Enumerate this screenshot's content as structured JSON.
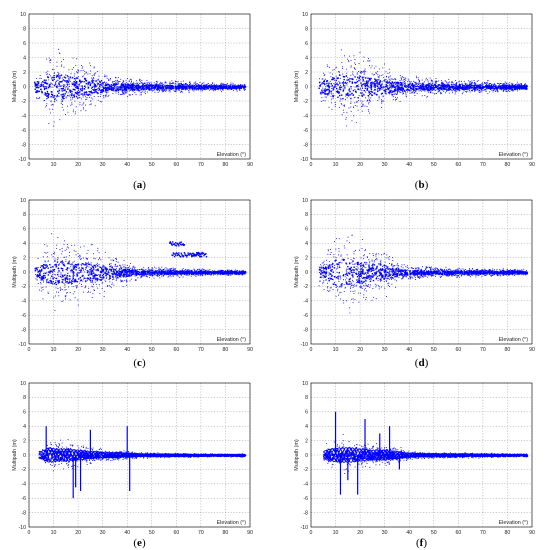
{
  "chart_data": [
    {
      "caption": "(a)",
      "type": "scatter",
      "ylabel": "Multipath (m)",
      "xlabel": "Elevation (°)",
      "xlim": [
        0,
        90
      ],
      "ylim": [
        -10,
        10
      ],
      "grid": true,
      "xticks": [
        0,
        10,
        20,
        30,
        40,
        50,
        60,
        70,
        80,
        90
      ],
      "yticks": [
        -10,
        -8,
        -6,
        -4,
        -2,
        0,
        2,
        4,
        6,
        8,
        10
      ],
      "color": "#0000ff",
      "envelope": [
        [
          5,
          3
        ],
        [
          8,
          6.5
        ],
        [
          12,
          7
        ],
        [
          15,
          6
        ],
        [
          18,
          5.5
        ],
        [
          22,
          5
        ],
        [
          25,
          4
        ],
        [
          28,
          3.5
        ],
        [
          30,
          2.5
        ],
        [
          35,
          2
        ],
        [
          40,
          1.8
        ],
        [
          50,
          1.2
        ],
        [
          60,
          1
        ],
        [
          70,
          0.8
        ],
        [
          80,
          0.7
        ],
        [
          88,
          0.6
        ]
      ],
      "elevation_range": [
        2,
        88
      ]
    },
    {
      "caption": "(b)",
      "type": "scatter",
      "ylabel": "Multipath (m)",
      "xlabel": "Elevation (°)",
      "xlim": [
        0,
        90
      ],
      "ylim": [
        -10,
        10
      ],
      "grid": true,
      "xticks": [
        0,
        10,
        20,
        30,
        40,
        50,
        60,
        70,
        80,
        90
      ],
      "yticks": [
        -10,
        -8,
        -6,
        -4,
        -2,
        0,
        2,
        4,
        6,
        8,
        10
      ],
      "color": "#0000ff",
      "envelope": [
        [
          5,
          3.5
        ],
        [
          8,
          5
        ],
        [
          12,
          7
        ],
        [
          15,
          6.5
        ],
        [
          20,
          6
        ],
        [
          24,
          5
        ],
        [
          28,
          4
        ],
        [
          32,
          3
        ],
        [
          36,
          2.5
        ],
        [
          40,
          1.8
        ],
        [
          50,
          1.4
        ],
        [
          60,
          1.2
        ],
        [
          70,
          1
        ],
        [
          80,
          0.9
        ],
        [
          88,
          0.8
        ]
      ],
      "elevation_range": [
        3,
        88
      ]
    },
    {
      "caption": "(c)",
      "type": "scatter",
      "ylabel": "Multipath (m)",
      "xlabel": "Elevation (°)",
      "xlim": [
        0,
        90
      ],
      "ylim": [
        -10,
        10
      ],
      "grid": true,
      "xticks": [
        0,
        10,
        20,
        30,
        40,
        50,
        60,
        70,
        80,
        90
      ],
      "yticks": [
        -10,
        -8,
        -6,
        -4,
        -2,
        0,
        2,
        4,
        6,
        8,
        10
      ],
      "color": "#0000ff",
      "envelope": [
        [
          3,
          3
        ],
        [
          8,
          6
        ],
        [
          12,
          7
        ],
        [
          16,
          6
        ],
        [
          20,
          5.5
        ],
        [
          25,
          5
        ],
        [
          30,
          4
        ],
        [
          35,
          3
        ],
        [
          40,
          2
        ],
        [
          45,
          1
        ],
        [
          60,
          0.8
        ],
        [
          70,
          0.6
        ],
        [
          80,
          0.5
        ],
        [
          88,
          0.5
        ]
      ],
      "elevation_range": [
        2,
        88
      ],
      "offset_segments": [
        {
          "x": [
            57,
            63
          ],
          "y": 4
        },
        {
          "x": [
            58,
            70
          ],
          "y": 2.5
        },
        {
          "x": [
            66,
            72
          ],
          "y": 2.5
        }
      ]
    },
    {
      "caption": "(d)",
      "type": "scatter",
      "ylabel": "Multipath (m)",
      "xlabel": "Elevation (°)",
      "xlim": [
        0,
        90
      ],
      "ylim": [
        -10,
        10
      ],
      "grid": true,
      "xticks": [
        0,
        10,
        20,
        30,
        40,
        50,
        60,
        70,
        80,
        90
      ],
      "yticks": [
        -10,
        -8,
        -6,
        -4,
        -2,
        0,
        2,
        4,
        6,
        8,
        10
      ],
      "color": "#0000ff",
      "envelope": [
        [
          5,
          3
        ],
        [
          8,
          6
        ],
        [
          12,
          8
        ],
        [
          15,
          7
        ],
        [
          20,
          6
        ],
        [
          25,
          5
        ],
        [
          30,
          4
        ],
        [
          33,
          3
        ],
        [
          36,
          1.5
        ],
        [
          40,
          1.2
        ],
        [
          50,
          1
        ],
        [
          60,
          0.8
        ],
        [
          70,
          0.7
        ],
        [
          80,
          0.6
        ],
        [
          88,
          0.5
        ]
      ],
      "elevation_range": [
        3,
        88
      ]
    },
    {
      "caption": "(e)",
      "type": "line",
      "ylabel": "Multipath (m)",
      "xlabel": "Elevation (°)",
      "xlim": [
        0,
        90
      ],
      "ylim": [
        -10,
        10
      ],
      "grid": true,
      "xticks": [
        0,
        10,
        20,
        30,
        40,
        50,
        60,
        70,
        80,
        90
      ],
      "yticks": [
        -10,
        -8,
        -6,
        -4,
        -2,
        0,
        2,
        4,
        6,
        8,
        10
      ],
      "color": "#0000ff",
      "envelope": [
        [
          5,
          1.5
        ],
        [
          8,
          3
        ],
        [
          12,
          2.5
        ],
        [
          16,
          2.5
        ],
        [
          20,
          2
        ],
        [
          25,
          1.5
        ],
        [
          30,
          1.2
        ],
        [
          35,
          1
        ],
        [
          40,
          0.8
        ],
        [
          45,
          0.5
        ],
        [
          60,
          0.4
        ],
        [
          70,
          0.3
        ],
        [
          80,
          0.3
        ],
        [
          88,
          0.3
        ]
      ],
      "elevation_range": [
        4,
        88
      ],
      "spikes": [
        [
          7,
          4
        ],
        [
          18,
          -6
        ],
        [
          19,
          -4.5
        ],
        [
          21,
          -5
        ],
        [
          25,
          3.5
        ],
        [
          40,
          4
        ],
        [
          41,
          -5
        ]
      ]
    },
    {
      "caption": "(f)",
      "type": "line",
      "ylabel": "Multipath (m)",
      "xlabel": "Elevation (°)",
      "xlim": [
        0,
        90
      ],
      "ylim": [
        -10,
        10
      ],
      "grid": true,
      "xticks": [
        0,
        10,
        20,
        30,
        40,
        50,
        60,
        70,
        80,
        90
      ],
      "yticks": [
        -10,
        -8,
        -6,
        -4,
        -2,
        0,
        2,
        4,
        6,
        8,
        10
      ],
      "color": "#0000ff",
      "envelope": [
        [
          5,
          1.5
        ],
        [
          8,
          2.5
        ],
        [
          12,
          3
        ],
        [
          16,
          3
        ],
        [
          20,
          2.5
        ],
        [
          25,
          2
        ],
        [
          30,
          2
        ],
        [
          35,
          1.5
        ],
        [
          40,
          0.8
        ],
        [
          45,
          0.6
        ],
        [
          60,
          0.5
        ],
        [
          70,
          0.4
        ],
        [
          80,
          0.3
        ],
        [
          88,
          0.3
        ]
      ],
      "elevation_range": [
        5,
        88
      ],
      "spikes": [
        [
          10,
          6
        ],
        [
          12,
          -5.5
        ],
        [
          15,
          -3.5
        ],
        [
          19,
          -5.5
        ],
        [
          22,
          5
        ],
        [
          28,
          3
        ],
        [
          32,
          4
        ],
        [
          36,
          -2
        ]
      ]
    }
  ]
}
